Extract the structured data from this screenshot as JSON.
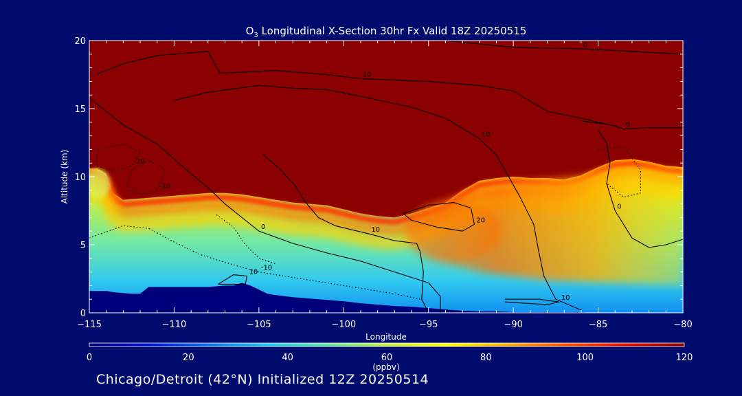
{
  "chart_data": {
    "type": "heatmap",
    "title": "O₃ Longitudinal X-Section 30hr  Fx Valid 18Z 20250515",
    "title_main": "O",
    "title_sub": "3",
    "title_rest": " Longitudinal X-Section 30hr  Fx Valid 18Z 20250515",
    "xlabel": "Longitude",
    "ylabel": "Altitude (km)",
    "xlim": [
      -115,
      -80
    ],
    "ylim": [
      0,
      20
    ],
    "x_ticks": [
      -115,
      -110,
      -105,
      -100,
      -95,
      -90,
      -85,
      -80
    ],
    "x_tick_labels": [
      "−115",
      "−110",
      "−105",
      "−100",
      "−95",
      "−90",
      "−85",
      "−80"
    ],
    "y_ticks": [
      0,
      5,
      10,
      15,
      20
    ],
    "y_tick_labels": [
      "0",
      "5",
      "10",
      "15",
      "20"
    ],
    "colorbar": {
      "label": "(ppbv)",
      "min": 0,
      "max": 120,
      "ticks": [
        0,
        20,
        40,
        60,
        80,
        100,
        120
      ],
      "tick_labels": [
        "0",
        "20",
        "40",
        "60",
        "80",
        "100",
        "120"
      ],
      "colors": [
        "#00007a",
        "#0010d8",
        "#0a70f0",
        "#20c8f0",
        "#60e8a0",
        "#c8f040",
        "#ffff00",
        "#ffb000",
        "#ff5000",
        "#e01000",
        "#8b0000"
      ]
    },
    "ozone_boundary_km": {
      "lon": [
        -115,
        -114.5,
        -114,
        -113.6,
        -113,
        -112,
        -111,
        -110,
        -109,
        -108,
        -107,
        -106,
        -105,
        -104,
        -103,
        -102,
        -101,
        -100,
        -99,
        -98,
        -97,
        -96,
        -95,
        -94,
        -93,
        -92,
        -91,
        -90,
        -89,
        -88,
        -87,
        -86,
        -85,
        -84,
        -83,
        -82,
        -81,
        -80
      ],
      "alt": [
        10.6,
        10.6,
        10.2,
        8.8,
        8.3,
        8.4,
        8.5,
        8.6,
        8.7,
        8.8,
        8.8,
        8.7,
        8.5,
        8.3,
        8.1,
        8.0,
        7.9,
        7.6,
        7.3,
        7.1,
        7.0,
        7.3,
        7.7,
        8.1,
        9.0,
        9.7,
        9.9,
        10.0,
        9.9,
        9.9,
        9.8,
        10.1,
        10.7,
        11.2,
        11.3,
        11.1,
        10.8,
        10.7
      ]
    },
    "terrain_km": {
      "lon": [
        -115,
        -114,
        -113.5,
        -112.5,
        -112,
        -111.5,
        -110,
        -109,
        -108,
        -107,
        -106.5,
        -106,
        -105.5,
        -105,
        -104.5,
        -104,
        -103,
        -102,
        -101,
        -100,
        -99,
        -98,
        -97,
        -96,
        -95,
        -94,
        -93,
        -92,
        -91,
        -90,
        -89,
        -88,
        -87,
        -86,
        -85,
        -84,
        -83,
        -82,
        -81,
        -80
      ],
      "alt": [
        1.6,
        1.6,
        1.5,
        1.4,
        1.4,
        1.9,
        1.9,
        1.9,
        1.9,
        2.0,
        2.0,
        2.2,
        2.0,
        1.7,
        1.4,
        1.3,
        1.15,
        1.05,
        0.95,
        0.85,
        0.7,
        0.6,
        0.5,
        0.45,
        0.35,
        0.25,
        0.15,
        0.1,
        0.1,
        0.05,
        0.05,
        0.05,
        0.05,
        0.05,
        0.0,
        0.0,
        0.0,
        0.0,
        0.0,
        0.0
      ]
    },
    "contours": [
      {
        "label": "0",
        "style": "solid",
        "points": [
          [
            -94,
            20
          ],
          [
            -90,
            19.5
          ],
          [
            -86,
            19.4
          ],
          [
            -83,
            19.2
          ],
          [
            -80,
            19.0
          ]
        ]
      },
      {
        "label": "10",
        "style": "solid",
        "points": [
          [
            -114.6,
            17.5
          ],
          [
            -113,
            18.3
          ],
          [
            -111,
            18.9
          ],
          [
            -108,
            19.2
          ],
          [
            -107.3,
            17.6
          ],
          [
            -104,
            17.8
          ],
          [
            -101,
            17.5
          ],
          [
            -99,
            17.2
          ],
          [
            -95,
            17.0
          ],
          [
            -92,
            16.7
          ],
          [
            -90,
            16.3
          ],
          [
            -88,
            14.8
          ],
          [
            -86,
            14.3
          ],
          [
            -84.3,
            13.8
          ]
        ]
      },
      {
        "label": "10",
        "style": "solid",
        "points": [
          [
            -110,
            15.6
          ],
          [
            -108,
            16.2
          ],
          [
            -105,
            16.7
          ],
          [
            -103,
            16.5
          ],
          [
            -101,
            16.4
          ],
          [
            -99,
            15.9
          ],
          [
            -96,
            15.1
          ],
          [
            -94,
            14.3
          ],
          [
            -92,
            12.8
          ],
          [
            -91,
            11.6
          ],
          [
            -90.5,
            10.5
          ],
          [
            -89.6,
            8.5
          ],
          [
            -88.8,
            6.5
          ],
          [
            -88.5,
            4.5
          ],
          [
            -88.2,
            2.7
          ],
          [
            -87.5,
            1.0
          ],
          [
            -86,
            0.2
          ]
        ]
      },
      {
        "label": "0",
        "style": "solid",
        "points": [
          [
            -86,
            14.1
          ],
          [
            -84.2,
            13.8
          ],
          [
            -83.5,
            13.5
          ],
          [
            -82,
            13.6
          ],
          [
            -80,
            13.6
          ]
        ]
      },
      {
        "label": "0",
        "style": "solid",
        "points": [
          [
            -85,
            13.4
          ],
          [
            -84.5,
            12.5
          ],
          [
            -84.3,
            11.0
          ],
          [
            -84.5,
            9.5
          ],
          [
            -84,
            7.5
          ],
          [
            -83,
            5.5
          ],
          [
            -82,
            4.8
          ],
          [
            -81,
            5.0
          ],
          [
            -80,
            5.4
          ]
        ]
      },
      {
        "label": "0",
        "style": "solid",
        "points": [
          [
            -115,
            15.8
          ],
          [
            -113,
            13.8
          ],
          [
            -111,
            12.4
          ],
          [
            -110,
            11.3
          ],
          [
            -109,
            10.2
          ],
          [
            -108,
            9.2
          ],
          [
            -107,
            8.0
          ],
          [
            -106,
            7.0
          ],
          [
            -105,
            6.0
          ],
          [
            -103,
            5.1
          ],
          [
            -101,
            4.4
          ],
          [
            -99,
            3.8
          ],
          [
            -97,
            3.0
          ],
          [
            -95,
            2.2
          ],
          [
            -94.3,
            1.2
          ],
          [
            -94.3,
            0
          ]
        ]
      },
      {
        "label": "10",
        "style": "solid",
        "points": [
          [
            -104.8,
            11.7
          ],
          [
            -103.8,
            10.6
          ],
          [
            -102.9,
            9.4
          ],
          [
            -102.3,
            8.2
          ],
          [
            -101.5,
            7.0
          ],
          [
            -100.5,
            6.4
          ],
          [
            -98.5,
            5.8
          ],
          [
            -97,
            5.3
          ],
          [
            -95.7,
            5.1
          ],
          [
            -95.5,
            4.5
          ],
          [
            -95.3,
            3.0
          ],
          [
            -95.4,
            1.0
          ],
          [
            -95.0,
            0
          ]
        ]
      },
      {
        "label": "20",
        "style": "solid",
        "points": [
          [
            -96.5,
            7.3
          ],
          [
            -95,
            7.9
          ],
          [
            -93.5,
            8.1
          ],
          [
            -92.5,
            7.7
          ],
          [
            -92.3,
            6.5
          ],
          [
            -93,
            6.0
          ],
          [
            -94.5,
            6.3
          ],
          [
            -96,
            6.8
          ],
          [
            -96.5,
            7.3
          ]
        ]
      },
      {
        "label": "10",
        "style": "solid",
        "points": [
          [
            -107.4,
            2.1
          ],
          [
            -106.5,
            2.8
          ],
          [
            -105.7,
            2.7
          ],
          [
            -105.8,
            2.1
          ],
          [
            -107.4,
            2.1
          ]
        ]
      },
      {
        "label": "10",
        "style": "solid",
        "points": [
          [
            -90.5,
            1.0
          ],
          [
            -88.5,
            1.0
          ],
          [
            -87.3,
            0.8
          ],
          [
            -88.0,
            0.6
          ],
          [
            -90.5,
            0.8
          ]
        ]
      },
      {
        "label": "-10",
        "style": "dotted",
        "points": [
          [
            -112.5,
            10.5
          ],
          [
            -111.5,
            11.2
          ],
          [
            -110.5,
            10.5
          ],
          [
            -111,
            9.0
          ],
          [
            -112,
            8.7
          ],
          [
            -112.8,
            9.4
          ],
          [
            -112.5,
            10.5
          ]
        ]
      },
      {
        "label": "-20",
        "style": "dotted",
        "points": [
          [
            -114.5,
            12.0
          ],
          [
            -113,
            12.4
          ],
          [
            -112,
            11.8
          ],
          [
            -112.5,
            10.8
          ],
          [
            -113.5,
            10.4
          ],
          [
            -114.6,
            10.8
          ],
          [
            -114.5,
            12.0
          ]
        ]
      },
      {
        "label": "-10",
        "style": "dotted",
        "points": [
          [
            -115,
            5.5
          ],
          [
            -113,
            6.4
          ],
          [
            -111.5,
            6.2
          ],
          [
            -110,
            5.2
          ],
          [
            -108.5,
            4.3
          ],
          [
            -107,
            3.7
          ],
          [
            -105,
            3.0
          ],
          [
            -103,
            2.6
          ],
          [
            -101,
            2.2
          ],
          [
            -99,
            1.8
          ],
          [
            -97,
            1.4
          ],
          [
            -95.5,
            1.0
          ]
        ]
      },
      {
        "label": "",
        "style": "dotted",
        "points": [
          [
            -107.5,
            7.2
          ],
          [
            -106.5,
            6.3
          ],
          [
            -105.8,
            5.0
          ],
          [
            -105,
            4.0
          ],
          [
            -104,
            3.6
          ]
        ]
      },
      {
        "label": "",
        "style": "dotted",
        "points": [
          [
            -85,
            12.0
          ],
          [
            -83.5,
            12.2
          ],
          [
            -82.5,
            10.5
          ],
          [
            -82.5,
            8.8
          ],
          [
            -83.5,
            8.5
          ],
          [
            -84.5,
            9.5
          ]
        ]
      }
    ]
  },
  "footer": {
    "text": "Chicago/Detroit (42°N) Initialized 12Z 20250514"
  }
}
